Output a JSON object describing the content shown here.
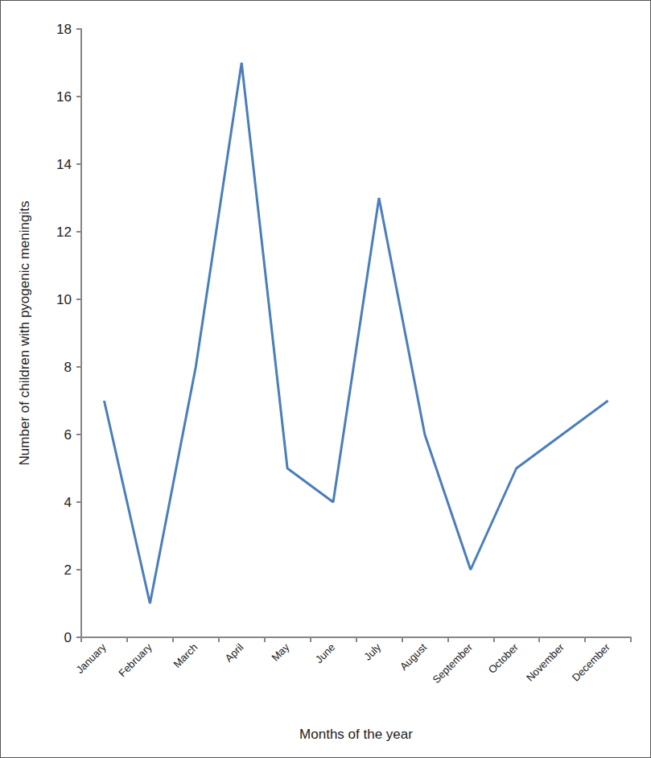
{
  "chart_data": {
    "type": "line",
    "x_label": "Months of the year",
    "y_label": "Number of children with pyogenic meningits",
    "categories": [
      "January",
      "February",
      "March",
      "April",
      "May",
      "June",
      "July",
      "August",
      "September",
      "October",
      "November",
      "December"
    ],
    "values": [
      7,
      1,
      8,
      17,
      5,
      4,
      13,
      6,
      2,
      5,
      6,
      7
    ],
    "color": "#4a7ebb",
    "ylim": [
      0,
      18
    ],
    "yticks": [
      0,
      2,
      4,
      6,
      8,
      10,
      12,
      14,
      16,
      18
    ],
    "grid": false
  }
}
